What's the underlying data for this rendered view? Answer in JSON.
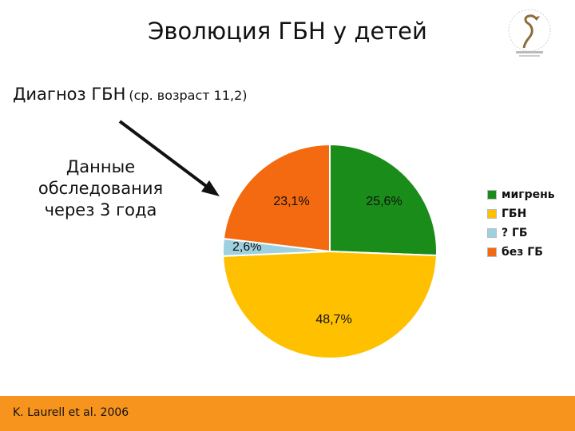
{
  "title": "Эволюция ГБН у детей",
  "diagnosis": {
    "label": "Диагноз ГБН",
    "note": "(ср. возраст 11,2)"
  },
  "side_note_lines": [
    "Данные",
    "обследования",
    "через 3 года"
  ],
  "footer": {
    "citation": "K. Laurell et al. 2006",
    "color": "#f7941d"
  },
  "chart_data": {
    "type": "pie",
    "slices": [
      {
        "label": "мигрень",
        "value": 25.6,
        "display": "25,6%",
        "color": "#1a8c1a"
      },
      {
        "label": "ГБН",
        "value": 48.7,
        "display": "48,7%",
        "color": "#ffc000"
      },
      {
        "label": "? ГБ",
        "value": 2.6,
        "display": "2,6%",
        "color": "#9dd1e0"
      },
      {
        "label": "без ГБ",
        "value": 23.1,
        "display": "23,1%",
        "color": "#f36a10"
      }
    ],
    "legend_position": "right"
  }
}
